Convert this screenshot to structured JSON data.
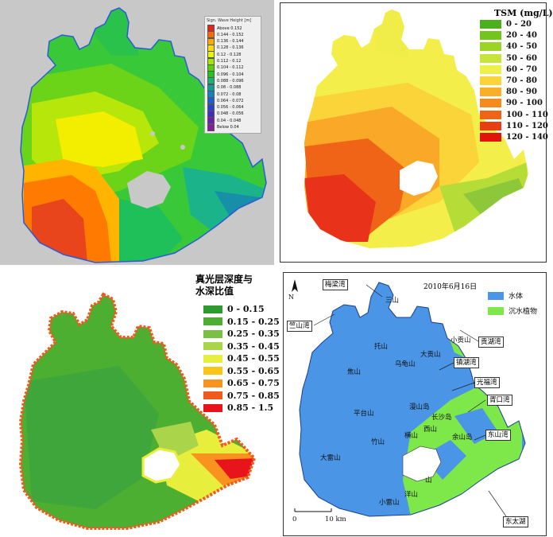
{
  "panel_wave": {
    "legend_title": "Sign. Wave Height [m]",
    "legend_items": [
      {
        "label": "Above 0.152",
        "color": "#e3251b"
      },
      {
        "label": "0.144 - 0.152",
        "color": "#ff6a00"
      },
      {
        "label": "0.136 - 0.144",
        "color": "#ffaa00"
      },
      {
        "label": "0.128 - 0.136",
        "color": "#ffdd00"
      },
      {
        "label": "0.12 - 0.128",
        "color": "#e6f500"
      },
      {
        "label": "0.112 - 0.12",
        "color": "#a6e600"
      },
      {
        "label": "0.104 - 0.112",
        "color": "#55d400"
      },
      {
        "label": "0.096 - 0.104",
        "color": "#22c422"
      },
      {
        "label": "0.088 - 0.096",
        "color": "#1bb37a"
      },
      {
        "label": "0.08 - 0.088",
        "color": "#169b9b"
      },
      {
        "label": "0.072 - 0.08",
        "color": "#1483c2"
      },
      {
        "label": "0.064 - 0.072",
        "color": "#1a5fd6"
      },
      {
        "label": "0.056 - 0.064",
        "color": "#2b3fd0"
      },
      {
        "label": "0.048 - 0.056",
        "color": "#4a2bc0"
      },
      {
        "label": "0.04 - 0.048",
        "color": "#6a1fb0"
      },
      {
        "label": "Below 0.04",
        "color": "#8a1a9e"
      }
    ]
  },
  "panel_tsm": {
    "legend_title": "TSM (mg/L)",
    "legend_items": [
      {
        "label": "0 - 20",
        "color": "#4caf1c"
      },
      {
        "label": "20 - 40",
        "color": "#73c41d"
      },
      {
        "label": "40 - 50",
        "color": "#9bd424"
      },
      {
        "label": "50 - 60",
        "color": "#c7e43a"
      },
      {
        "label": "60 - 70",
        "color": "#eef04a"
      },
      {
        "label": "70 - 80",
        "color": "#fbd43a"
      },
      {
        "label": "80 - 90",
        "color": "#f9b027"
      },
      {
        "label": "90 - 100",
        "color": "#f58a1e"
      },
      {
        "label": "100 - 110",
        "color": "#f06418"
      },
      {
        "label": "110 - 120",
        "color": "#e93d12"
      },
      {
        "label": "120 - 140",
        "color": "#e0140c"
      }
    ]
  },
  "panel_euphotic": {
    "legend_title_line1": "真光层深度与",
    "legend_title_line2": "水深比值",
    "legend_items": [
      {
        "label": "0 - 0.15",
        "color": "#2e9b2e"
      },
      {
        "label": "0.15 - 0.25",
        "color": "#4caf32"
      },
      {
        "label": "0.25 - 0.35",
        "color": "#7bc043"
      },
      {
        "label": "0.35 - 0.45",
        "color": "#aad44a"
      },
      {
        "label": "0.45 - 0.55",
        "color": "#e8ee3c"
      },
      {
        "label": "0.55 - 0.65",
        "color": "#fbc515"
      },
      {
        "label": "0.65 - 0.75",
        "color": "#f7931e"
      },
      {
        "label": "0.75 - 0.85",
        "color": "#f05a1e"
      },
      {
        "label": "0.85 - 1.5",
        "color": "#e8141c"
      }
    ]
  },
  "panel_vegetation": {
    "date": "2010年6月16日",
    "north": "N",
    "scale_start": "0",
    "scale_end": "10 km",
    "legend_items": [
      {
        "label": "水体",
        "color": "#4a95e6"
      },
      {
        "label": "沉水植物",
        "color": "#7ee84a"
      }
    ],
    "box_labels": {
      "meiliang": "梅梁湾",
      "zhushan": "竺山湾",
      "gonghu": "贡湖湾",
      "zhenhu": "镇湖湾",
      "guangfu": "光福湾",
      "xukou": "胥口湾",
      "dongshan_bay": "东山湾",
      "donghu": "东太湖"
    },
    "place_labels": {
      "sanshan": "三山",
      "tuoshan": "托山",
      "xiaogong": "小贡山",
      "dagong": "大贡山",
      "wugui": "乌龟山",
      "jiaoshan": "焦山",
      "mantan": "漫山岛",
      "changsha": "长沙岛",
      "xishan": "西山",
      "pingtai": "平台山",
      "hengshan": "横山",
      "zhushan2": "竹山",
      "yushan": "余山岛",
      "daleishan": "大雷山",
      "xiaoleishan": "小雷山",
      "tianshan": "洋山",
      "shan": "山"
    }
  }
}
